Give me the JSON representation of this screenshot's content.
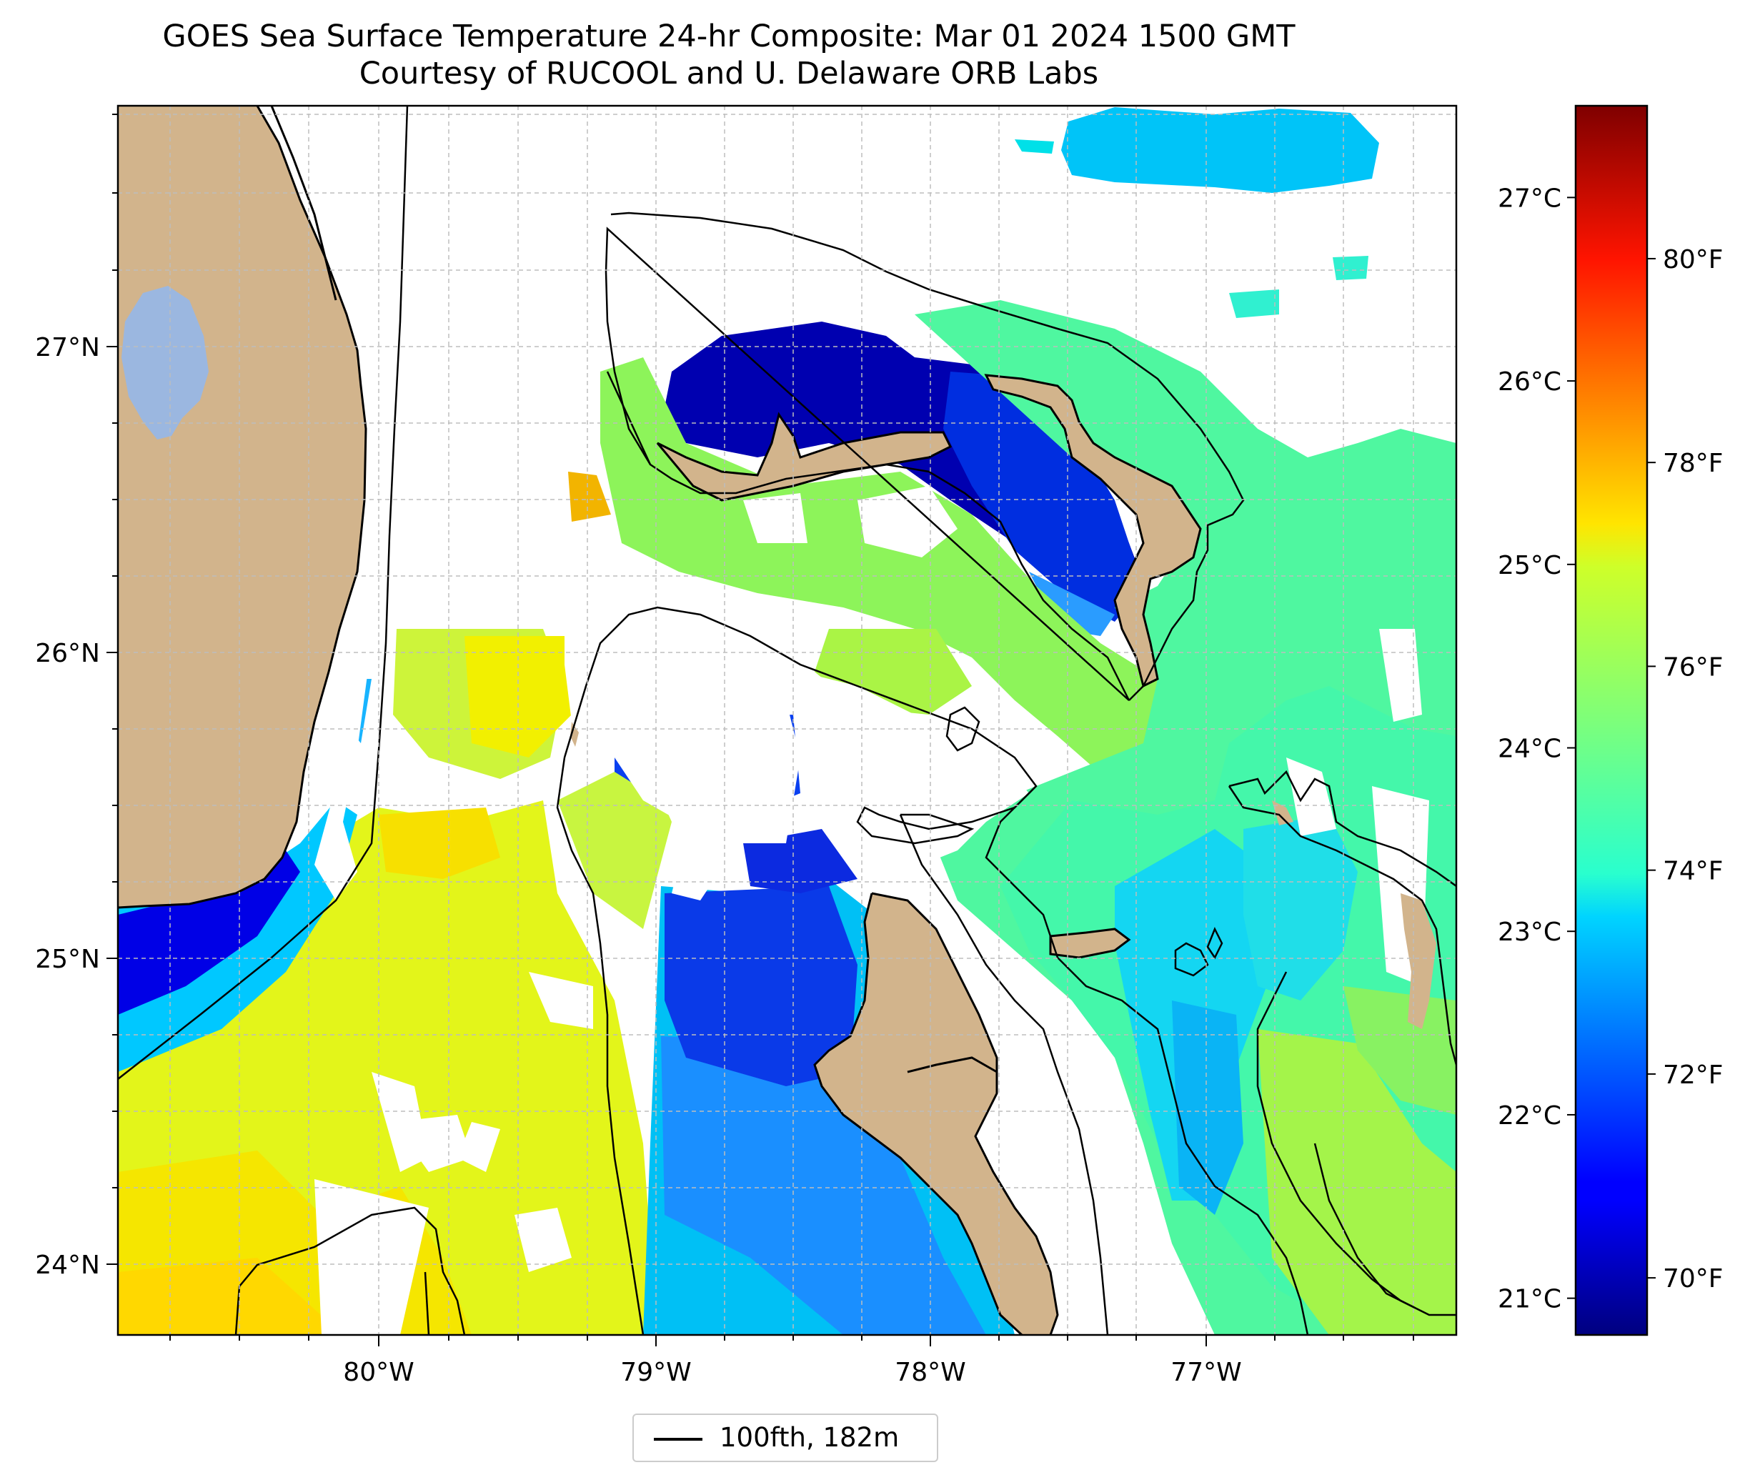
{
  "title_line1": "GOES Sea Surface Temperature 24-hr Composite: Mar 01 2024 1500 GMT",
  "title_line2": "Courtesy of RUCOOL and U. Delaware ORB Labs",
  "longitude_labels": [
    "80°W",
    "79°W",
    "78°W",
    "77°W"
  ],
  "latitude_labels": [
    "27°N",
    "26°N",
    "25°N",
    "24°N"
  ],
  "colorbar": {
    "colormap": "jet",
    "range_celsius": [
      20.8,
      27.5
    ],
    "celsius_ticks": [
      {
        "value": 27,
        "label": "27°C"
      },
      {
        "value": 26,
        "label": "26°C"
      },
      {
        "value": 25,
        "label": "25°C"
      },
      {
        "value": 24,
        "label": "24°C"
      },
      {
        "value": 23,
        "label": "23°C"
      },
      {
        "value": 22,
        "label": "22°C"
      },
      {
        "value": 21,
        "label": "21°C"
      }
    ],
    "fahrenheit_ticks": [
      {
        "value": 80,
        "label": "80°F"
      },
      {
        "value": 78,
        "label": "78°F"
      },
      {
        "value": 76,
        "label": "76°F"
      },
      {
        "value": 74,
        "label": "74°F"
      },
      {
        "value": 72,
        "label": "72°F"
      },
      {
        "value": 70,
        "label": "70°F"
      }
    ]
  },
  "legend": {
    "label": "100fth, 182m",
    "line_color": "#000000"
  },
  "colors": {
    "land": "#d2b48c",
    "lake": "#9bb7e0",
    "coast": "#000000",
    "no_data": "#ffffff"
  },
  "chart_data": {
    "type": "heatmap",
    "variable": "sea surface temperature",
    "units": "°C",
    "lon_range": [
      -80.95,
      -76.1
    ],
    "lat_range": [
      23.75,
      27.8
    ],
    "grid": true
  }
}
